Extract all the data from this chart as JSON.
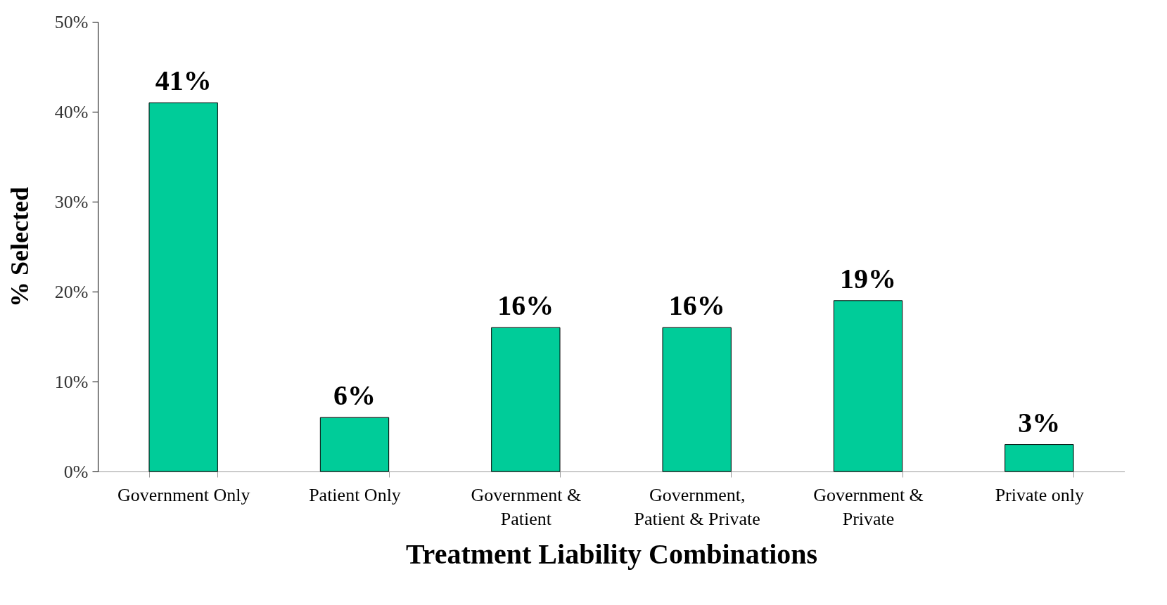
{
  "chart_data": {
    "type": "bar",
    "xlabel": "Treatment Liability Combinations",
    "ylabel": "% Selected",
    "categories": [
      "Government Only",
      "Patient Only",
      "Government & Patient",
      "Government, Patient & Private",
      "Government & Private",
      "Private only"
    ],
    "values": [
      41,
      6,
      16,
      16,
      19,
      3
    ],
    "value_labels": [
      "41%",
      "6%",
      "16%",
      "16%",
      "19%",
      "3%"
    ],
    "color": "#00cc99",
    "ylim": [
      0,
      50
    ],
    "yticks": [
      {
        "value": 0,
        "label": "0%"
      },
      {
        "value": 10,
        "label": "10%"
      },
      {
        "value": 20,
        "label": "20%"
      },
      {
        "value": 30,
        "label": "30%"
      },
      {
        "value": 40,
        "label": "40%"
      },
      {
        "value": 50,
        "label": "50%"
      }
    ],
    "grid": false
  }
}
